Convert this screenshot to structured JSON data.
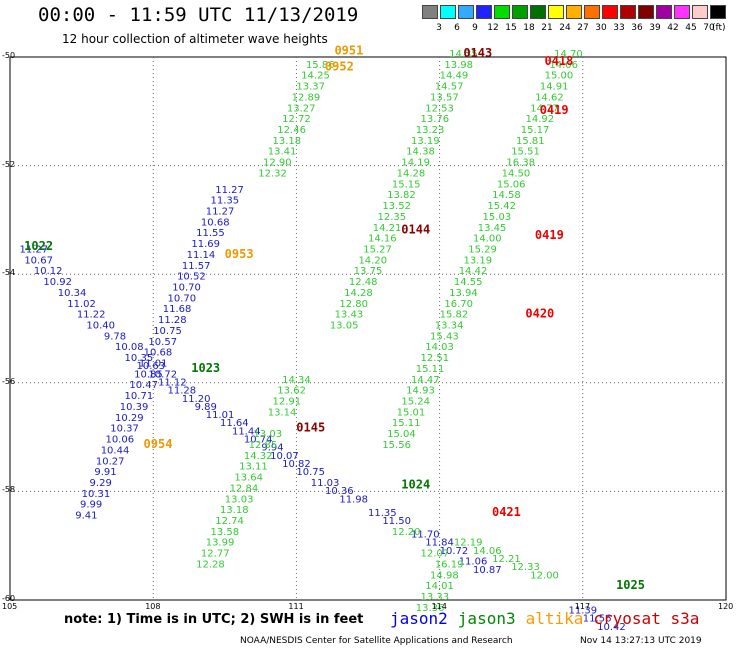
{
  "title": "00:00 - 11:59 UTC 11/13/2019",
  "subtitle": "12 hour collection of altimeter wave heights",
  "legend": {
    "colors": [
      "#808080",
      "#00ffff",
      "#33aaff",
      "#2222ff",
      "#00dd00",
      "#00a000",
      "#007000",
      "#ffff00",
      "#ffb000",
      "#ff7000",
      "#ff0000",
      "#b00000",
      "#800000",
      "#a000a0",
      "#ff33ff",
      "#ffcccc",
      "#000000"
    ],
    "ticks": [
      "3",
      "6",
      "9",
      "12",
      "15",
      "18",
      "21",
      "24",
      "27",
      "30",
      "33",
      "36",
      "39",
      "42",
      "45",
      "70"
    ],
    "unit": "(ft)"
  },
  "axes": {
    "lat_labels": [
      "-50",
      "-52",
      "-54",
      "-56",
      "-58",
      "-60"
    ],
    "lon_labels": [
      "105",
      "108",
      "111",
      "114",
      "117",
      "120"
    ]
  },
  "note": "note: 1) Time is in UTC; 2) SWH is in feet",
  "satellites": [
    {
      "name": "jason2",
      "color": "#0000ee"
    },
    {
      "name": "jason3",
      "color": "#008800"
    },
    {
      "name": "altika",
      "color": "#ff9900"
    },
    {
      "name": "cryosat s3a",
      "color": "#cc0000"
    }
  ],
  "credit": "NOAA/NESDIS Center for Satellite Applications and Research",
  "stamp": "Nov 14 13:27:13 UTC 2019",
  "time_labels": [
    {
      "text": "0951",
      "lon": 112.1,
      "lat": -49.95,
      "color": "#ee9900"
    },
    {
      "text": "0952",
      "lon": 111.9,
      "lat": -50.25,
      "color": "#ee9900"
    },
    {
      "text": "0953",
      "lon": 109.8,
      "lat": -53.7,
      "color": "#ee9900"
    },
    {
      "text": "0954",
      "lon": 108.1,
      "lat": -57.2,
      "color": "#ee9900"
    },
    {
      "text": "0143",
      "lon": 114.8,
      "lat": -50.0,
      "color": "#880000"
    },
    {
      "text": "0144",
      "lon": 113.5,
      "lat": -53.25,
      "color": "#880000"
    },
    {
      "text": "0145",
      "lon": 111.3,
      "lat": -56.9,
      "color": "#880000"
    },
    {
      "text": "0418",
      "lon": 116.5,
      "lat": -50.15,
      "color": "#ee0000"
    },
    {
      "text": "0419",
      "lon": 116.4,
      "lat": -51.05,
      "color": "#ee0000"
    },
    {
      "text": "0419",
      "lon": 116.3,
      "lat": -53.35,
      "color": "#ee0000"
    },
    {
      "text": "0420",
      "lon": 116.1,
      "lat": -54.8,
      "color": "#ee0000"
    },
    {
      "text": "0421",
      "lon": 115.4,
      "lat": -58.45,
      "color": "#ee0000"
    },
    {
      "text": "1022",
      "lon": 105.6,
      "lat": -53.55,
      "color": "#007700"
    },
    {
      "text": "1023",
      "lon": 109.1,
      "lat": -55.8,
      "color": "#007700"
    },
    {
      "text": "1024",
      "lon": 113.5,
      "lat": -57.95,
      "color": "#007700"
    },
    {
      "text": "1025",
      "lon": 118.0,
      "lat": -59.8,
      "color": "#007700"
    }
  ],
  "tracks": [
    {
      "satellite": "jason2",
      "color": "#1a1acc",
      "points": [
        {
          "lon": 105.5,
          "lat": -53.6,
          "v": "11.27"
        },
        {
          "lon": 105.6,
          "lat": -53.8,
          "v": "10.67"
        },
        {
          "lon": 105.8,
          "lat": -54.0,
          "v": "10.12"
        },
        {
          "lon": 106.0,
          "lat": -54.2,
          "v": "10.92"
        },
        {
          "lon": 106.3,
          "lat": -54.4,
          "v": "10.34"
        },
        {
          "lon": 106.5,
          "lat": -54.6,
          "v": "11.02"
        },
        {
          "lon": 106.7,
          "lat": -54.8,
          "v": "11.22"
        },
        {
          "lon": 106.9,
          "lat": -55.0,
          "v": "10.40"
        },
        {
          "lon": 107.2,
          "lat": -55.2,
          "v": "9.78"
        },
        {
          "lon": 107.5,
          "lat": -55.4,
          "v": "10.08"
        },
        {
          "lon": 107.7,
          "lat": -55.6,
          "v": "10.35"
        },
        {
          "lon": 107.95,
          "lat": -55.75,
          "v": "10.63"
        },
        {
          "lon": 108.2,
          "lat": -55.9,
          "v": "10.72"
        },
        {
          "lon": 108.4,
          "lat": -56.05,
          "v": "11.12"
        },
        {
          "lon": 108.6,
          "lat": -56.2,
          "v": "11.28"
        },
        {
          "lon": 108.9,
          "lat": -56.35,
          "v": "11.20"
        },
        {
          "lon": 109.1,
          "lat": -56.5,
          "v": "9.89"
        },
        {
          "lon": 109.4,
          "lat": -56.65,
          "v": "11.01"
        },
        {
          "lon": 109.7,
          "lat": -56.8,
          "v": "11.64"
        },
        {
          "lon": 109.95,
          "lat": -56.95,
          "v": "11.44"
        },
        {
          "lon": 110.2,
          "lat": -57.1,
          "v": "10.74"
        },
        {
          "lon": 110.5,
          "lat": -57.25,
          "v": "9.94"
        },
        {
          "lon": 110.75,
          "lat": -57.4,
          "v": "10.07"
        },
        {
          "lon": 111.0,
          "lat": -57.55,
          "v": "10.82"
        },
        {
          "lon": 111.3,
          "lat": -57.7,
          "v": "10.75"
        },
        {
          "lon": 111.6,
          "lat": -57.9,
          "v": "11.03"
        },
        {
          "lon": 111.9,
          "lat": -58.05,
          "v": "10.36"
        },
        {
          "lon": 112.2,
          "lat": -58.2,
          "v": "11.98"
        },
        {
          "lon": 112.8,
          "lat": -58.45,
          "v": "11.35"
        },
        {
          "lon": 113.1,
          "lat": -58.6,
          "v": "11.50"
        },
        {
          "lon": 113.7,
          "lat": -58.85,
          "v": "11.70"
        },
        {
          "lon": 114.0,
          "lat": -59.0,
          "v": "11.84"
        },
        {
          "lon": 114.3,
          "lat": -59.15,
          "v": "10.72"
        },
        {
          "lon": 114.7,
          "lat": -59.35,
          "v": "11.06"
        },
        {
          "lon": 115.0,
          "lat": -59.5,
          "v": "10.87"
        },
        {
          "lon": 117.0,
          "lat": -60.25,
          "v": "11.39"
        },
        {
          "lon": 117.3,
          "lat": -60.4,
          "v": "11.56"
        },
        {
          "lon": 117.6,
          "lat": -60.55,
          "v": "10.42"
        }
      ]
    },
    {
      "satellite": "jason2",
      "color": "#1a1acc",
      "points": [
        {
          "lon": 109.6,
          "lat": -52.5,
          "v": "11.27"
        },
        {
          "lon": 109.5,
          "lat": -52.7,
          "v": "11.35"
        },
        {
          "lon": 109.4,
          "lat": -52.9,
          "v": "11.27"
        },
        {
          "lon": 109.3,
          "lat": -53.1,
          "v": "10.68"
        },
        {
          "lon": 109.2,
          "lat": -53.3,
          "v": "11.55"
        },
        {
          "lon": 109.1,
          "lat": -53.5,
          "v": "11.69"
        },
        {
          "lon": 109.0,
          "lat": -53.7,
          "v": "11.14"
        },
        {
          "lon": 108.9,
          "lat": -53.9,
          "v": "11.57"
        },
        {
          "lon": 108.8,
          "lat": -54.1,
          "v": "10.52"
        },
        {
          "lon": 108.7,
          "lat": -54.3,
          "v": "10.70"
        },
        {
          "lon": 108.6,
          "lat": -54.5,
          "v": "10.70"
        },
        {
          "lon": 108.5,
          "lat": -54.7,
          "v": "11.68"
        },
        {
          "lon": 108.4,
          "lat": -54.9,
          "v": "11.28"
        },
        {
          "lon": 108.3,
          "lat": -55.1,
          "v": "10.75"
        },
        {
          "lon": 108.2,
          "lat": -55.3,
          "v": "10.57"
        },
        {
          "lon": 108.1,
          "lat": -55.5,
          "v": "10.68"
        },
        {
          "lon": 108.0,
          "lat": -55.7,
          "v": "11.01"
        },
        {
          "lon": 107.9,
          "lat": -55.9,
          "v": "10.85"
        },
        {
          "lon": 107.8,
          "lat": -56.1,
          "v": "10.47"
        },
        {
          "lon": 107.7,
          "lat": -56.3,
          "v": "10.71"
        },
        {
          "lon": 107.6,
          "lat": -56.5,
          "v": "10.39"
        },
        {
          "lon": 107.5,
          "lat": -56.7,
          "v": "10.29"
        },
        {
          "lon": 107.4,
          "lat": -56.9,
          "v": "10.37"
        },
        {
          "lon": 107.3,
          "lat": -57.1,
          "v": "10.06"
        },
        {
          "lon": 107.2,
          "lat": -57.3,
          "v": "10.44"
        },
        {
          "lon": 107.1,
          "lat": -57.5,
          "v": "10.27"
        },
        {
          "lon": 107.0,
          "lat": -57.7,
          "v": "9.91"
        },
        {
          "lon": 106.9,
          "lat": -57.9,
          "v": "9.29"
        },
        {
          "lon": 106.8,
          "lat": -58.1,
          "v": "10.31"
        },
        {
          "lon": 106.7,
          "lat": -58.3,
          "v": "9.99"
        },
        {
          "lon": 106.6,
          "lat": -58.5,
          "v": "9.41"
        }
      ]
    },
    {
      "satellite": "jason3",
      "color": "#33cc33",
      "points": [
        {
          "lon": 111.5,
          "lat": -50.2,
          "v": "15.86"
        },
        {
          "lon": 111.4,
          "lat": -50.4,
          "v": "14.25"
        },
        {
          "lon": 111.3,
          "lat": -50.6,
          "v": "13.37"
        },
        {
          "lon": 111.2,
          "lat": -50.8,
          "v": "12.89"
        },
        {
          "lon": 111.1,
          "lat": -51.0,
          "v": "13.27"
        },
        {
          "lon": 111.0,
          "lat": -51.2,
          "v": "12.72"
        },
        {
          "lon": 110.9,
          "lat": -51.4,
          "v": "12.46"
        },
        {
          "lon": 110.8,
          "lat": -51.6,
          "v": "13.18"
        },
        {
          "lon": 110.7,
          "lat": -51.8,
          "v": "13.41"
        },
        {
          "lon": 110.6,
          "lat": -52.0,
          "v": "12.90"
        },
        {
          "lon": 110.5,
          "lat": -52.2,
          "v": "12.32"
        },
        {
          "lon": 111.0,
          "lat": -56.0,
          "v": "14.34"
        },
        {
          "lon": 110.9,
          "lat": -56.2,
          "v": "13.62"
        },
        {
          "lon": 110.8,
          "lat": -56.4,
          "v": "12.91"
        },
        {
          "lon": 110.7,
          "lat": -56.6,
          "v": "13.14"
        },
        {
          "lon": 110.4,
          "lat": -57.0,
          "v": "13.03"
        },
        {
          "lon": 110.3,
          "lat": -57.2,
          "v": "12.85"
        },
        {
          "lon": 110.2,
          "lat": -57.4,
          "v": "14.32"
        },
        {
          "lon": 110.1,
          "lat": -57.6,
          "v": "13.11"
        },
        {
          "lon": 110.0,
          "lat": -57.8,
          "v": "13.64"
        },
        {
          "lon": 109.9,
          "lat": -58.0,
          "v": "12.84"
        },
        {
          "lon": 109.8,
          "lat": -58.2,
          "v": "13.03"
        },
        {
          "lon": 109.7,
          "lat": -58.4,
          "v": "13.18"
        },
        {
          "lon": 109.6,
          "lat": -58.6,
          "v": "12.74"
        },
        {
          "lon": 109.5,
          "lat": -58.8,
          "v": "13.58"
        },
        {
          "lon": 109.4,
          "lat": -59.0,
          "v": "13.99"
        },
        {
          "lon": 109.3,
          "lat": -59.2,
          "v": "12.77"
        },
        {
          "lon": 109.2,
          "lat": -59.4,
          "v": "12.28"
        }
      ]
    },
    {
      "satellite": "jason3",
      "color": "#33cc33",
      "points": [
        {
          "lon": 114.5,
          "lat": -50.0,
          "v": "14.35"
        },
        {
          "lon": 114.4,
          "lat": -50.2,
          "v": "13.98"
        },
        {
          "lon": 114.3,
          "lat": -50.4,
          "v": "14.49"
        },
        {
          "lon": 114.2,
          "lat": -50.6,
          "v": "14.57"
        },
        {
          "lon": 114.1,
          "lat": -50.8,
          "v": "13.57"
        },
        {
          "lon": 114.0,
          "lat": -51.0,
          "v": "12.53"
        },
        {
          "lon": 113.9,
          "lat": -51.2,
          "v": "13.76"
        },
        {
          "lon": 113.8,
          "lat": -51.4,
          "v": "13.23"
        },
        {
          "lon": 113.7,
          "lat": -51.6,
          "v": "13.19"
        },
        {
          "lon": 113.6,
          "lat": -51.8,
          "v": "14.38"
        },
        {
          "lon": 113.5,
          "lat": -52.0,
          "v": "14.19"
        },
        {
          "lon": 113.4,
          "lat": -52.2,
          "v": "14.28"
        },
        {
          "lon": 113.3,
          "lat": -52.4,
          "v": "15.15"
        },
        {
          "lon": 113.2,
          "lat": -52.6,
          "v": "13.82"
        },
        {
          "lon": 113.1,
          "lat": -52.8,
          "v": "13.52"
        },
        {
          "lon": 113.0,
          "lat": -53.0,
          "v": "12.35"
        },
        {
          "lon": 112.9,
          "lat": -53.2,
          "v": "14.21"
        },
        {
          "lon": 112.8,
          "lat": -53.4,
          "v": "14.16"
        },
        {
          "lon": 112.7,
          "lat": -53.6,
          "v": "15.27"
        },
        {
          "lon": 112.6,
          "lat": -53.8,
          "v": "14.20"
        },
        {
          "lon": 112.5,
          "lat": -54.0,
          "v": "13.75"
        },
        {
          "lon": 112.4,
          "lat": -54.2,
          "v": "12.48"
        },
        {
          "lon": 112.3,
          "lat": -54.4,
          "v": "14.28"
        },
        {
          "lon": 112.2,
          "lat": -54.6,
          "v": "12.80"
        },
        {
          "lon": 112.1,
          "lat": -54.8,
          "v": "13.43"
        },
        {
          "lon": 112.0,
          "lat": -55.0,
          "v": "13.05"
        },
        {
          "lon": 113.3,
          "lat": -58.8,
          "v": "12.20"
        },
        {
          "lon": 113.9,
          "lat": -59.2,
          "v": "12.07"
        },
        {
          "lon": 114.2,
          "lat": -59.4,
          "v": "16.19"
        },
        {
          "lon": 114.1,
          "lat": -59.6,
          "v": "14.98"
        },
        {
          "lon": 114.0,
          "lat": -59.8,
          "v": "14.01"
        },
        {
          "lon": 113.9,
          "lat": -60.0,
          "v": "13.33"
        },
        {
          "lon": 113.8,
          "lat": -60.2,
          "v": "13.36"
        }
      ]
    },
    {
      "satellite": "jason3",
      "color": "#33cc33",
      "points": [
        {
          "lon": 116.7,
          "lat": -50.0,
          "v": "14.70"
        },
        {
          "lon": 116.6,
          "lat": -50.2,
          "v": "14.06"
        },
        {
          "lon": 116.5,
          "lat": -50.4,
          "v": "15.00"
        },
        {
          "lon": 116.4,
          "lat": -50.6,
          "v": "14.91"
        },
        {
          "lon": 116.3,
          "lat": -50.8,
          "v": "14.62"
        },
        {
          "lon": 116.2,
          "lat": -51.0,
          "v": "14.77"
        },
        {
          "lon": 116.1,
          "lat": -51.2,
          "v": "14.92"
        },
        {
          "lon": 116.0,
          "lat": -51.4,
          "v": "15.17"
        },
        {
          "lon": 115.9,
          "lat": -51.6,
          "v": "15.81"
        },
        {
          "lon": 115.8,
          "lat": -51.8,
          "v": "15.51"
        },
        {
          "lon": 115.7,
          "lat": -52.0,
          "v": "16.38"
        },
        {
          "lon": 115.6,
          "lat": -52.2,
          "v": "14.50"
        },
        {
          "lon": 115.5,
          "lat": -52.4,
          "v": "15.06"
        },
        {
          "lon": 115.4,
          "lat": -52.6,
          "v": "14.58"
        },
        {
          "lon": 115.3,
          "lat": -52.8,
          "v": "15.42"
        },
        {
          "lon": 115.2,
          "lat": -53.0,
          "v": "15.03"
        },
        {
          "lon": 115.1,
          "lat": -53.2,
          "v": "13.45"
        },
        {
          "lon": 115.0,
          "lat": -53.4,
          "v": "14.00"
        },
        {
          "lon": 114.9,
          "lat": -53.6,
          "v": "15.29"
        },
        {
          "lon": 114.8,
          "lat": -53.8,
          "v": "13.19"
        },
        {
          "lon": 114.7,
          "lat": -54.0,
          "v": "14.42"
        },
        {
          "lon": 114.6,
          "lat": -54.2,
          "v": "14.55"
        },
        {
          "lon": 114.5,
          "lat": -54.4,
          "v": "13.94"
        },
        {
          "lon": 114.4,
          "lat": -54.6,
          "v": "16.70"
        },
        {
          "lon": 114.3,
          "lat": -54.8,
          "v": "15.82"
        },
        {
          "lon": 114.2,
          "lat": -55.0,
          "v": "13.34"
        },
        {
          "lon": 114.1,
          "lat": -55.2,
          "v": "15.43"
        },
        {
          "lon": 114.0,
          "lat": -55.4,
          "v": "14.03"
        },
        {
          "lon": 113.9,
          "lat": -55.6,
          "v": "12.51"
        },
        {
          "lon": 113.8,
          "lat": -55.8,
          "v": "15.11"
        },
        {
          "lon": 113.7,
          "lat": -56.0,
          "v": "14.47"
        },
        {
          "lon": 113.6,
          "lat": -56.2,
          "v": "14.93"
        },
        {
          "lon": 113.5,
          "lat": -56.4,
          "v": "15.24"
        },
        {
          "lon": 113.4,
          "lat": -56.6,
          "v": "15.01"
        },
        {
          "lon": 113.3,
          "lat": -56.8,
          "v": "15.11"
        },
        {
          "lon": 113.2,
          "lat": -57.0,
          "v": "15.04"
        },
        {
          "lon": 113.1,
          "lat": -57.2,
          "v": "15.56"
        },
        {
          "lon": 114.6,
          "lat": -59.0,
          "v": "12.19"
        },
        {
          "lon": 115.0,
          "lat": -59.15,
          "v": "14.06"
        },
        {
          "lon": 115.4,
          "lat": -59.3,
          "v": "12.21"
        },
        {
          "lon": 115.8,
          "lat": -59.45,
          "v": "12.33"
        },
        {
          "lon": 116.2,
          "lat": -59.6,
          "v": "12.00"
        }
      ]
    }
  ]
}
